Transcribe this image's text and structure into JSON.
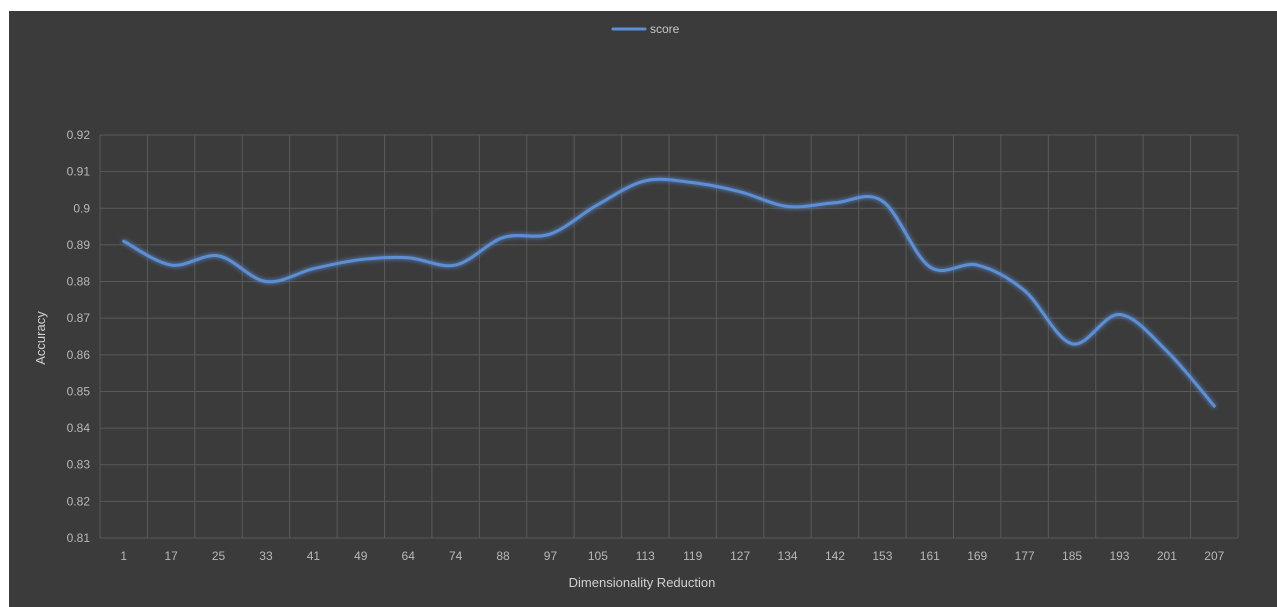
{
  "chart_data": {
    "type": "line",
    "title": "",
    "xlabel": "Dimensionality Reduction",
    "ylabel": "Accuracy",
    "categories": [
      "1",
      "17",
      "25",
      "33",
      "41",
      "49",
      "64",
      "74",
      "88",
      "97",
      "105",
      "113",
      "119",
      "127",
      "134",
      "142",
      "153",
      "161",
      "169",
      "177",
      "185",
      "193",
      "201",
      "207"
    ],
    "series": [
      {
        "name": "score",
        "color": "#5b8fd6",
        "values": [
          0.891,
          0.8845,
          0.887,
          0.88,
          0.8835,
          0.886,
          0.8865,
          0.8845,
          0.892,
          0.893,
          0.901,
          0.9075,
          0.907,
          0.9045,
          0.9005,
          0.9015,
          0.902,
          0.884,
          0.8845,
          0.8775,
          0.863,
          0.871,
          0.861,
          0.846
        ]
      }
    ],
    "ylim": [
      0.81,
      0.92
    ],
    "yticks": [
      "0.81",
      "0.82",
      "0.83",
      "0.84",
      "0.85",
      "0.86",
      "0.87",
      "0.88",
      "0.89",
      "0.9",
      "0.91",
      "0.92"
    ],
    "grid": true,
    "legend_position": "top-center",
    "background_color": "#3b3b3b",
    "grid_color": "#5a5a5a"
  }
}
